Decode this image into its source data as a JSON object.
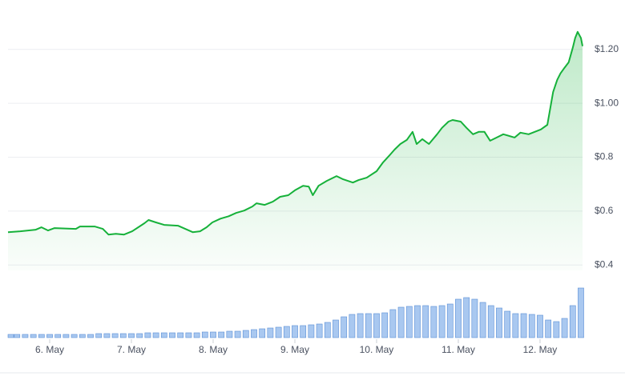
{
  "chart_data": [
    {
      "type": "line",
      "color": "#16b13a",
      "x": [
        5.49,
        5.64,
        5.83,
        5.9,
        5.98,
        6.06,
        6.32,
        6.37,
        6.55,
        6.65,
        6.72,
        6.81,
        6.91,
        7.01,
        7.16,
        7.21,
        7.3,
        7.4,
        7.57,
        7.75,
        7.84,
        7.92,
        7.99,
        8.09,
        8.19,
        8.28,
        8.38,
        8.48,
        8.53,
        8.63,
        8.73,
        8.82,
        8.92,
        9.0,
        9.1,
        9.17,
        9.22,
        9.29,
        9.39,
        9.51,
        9.59,
        9.71,
        9.78,
        9.88,
        10.0,
        10.08,
        10.15,
        10.22,
        10.29,
        10.37,
        10.44,
        10.49,
        10.56,
        10.64,
        10.74,
        10.8,
        10.88,
        10.93,
        11.03,
        11.1,
        11.18,
        11.25,
        11.32,
        11.39,
        11.47,
        11.55,
        11.69,
        11.76,
        11.86,
        12.01,
        12.09,
        12.16,
        12.21,
        12.25,
        12.3,
        12.35,
        12.4,
        12.43,
        12.46,
        12.5,
        12.52
      ],
      "values": [
        0.522,
        0.525,
        0.531,
        0.54,
        0.528,
        0.537,
        0.534,
        0.543,
        0.543,
        0.534,
        0.513,
        0.516,
        0.513,
        0.525,
        0.555,
        0.567,
        0.558,
        0.549,
        0.546,
        0.522,
        0.525,
        0.54,
        0.558,
        0.572,
        0.581,
        0.593,
        0.602,
        0.617,
        0.629,
        0.623,
        0.635,
        0.653,
        0.659,
        0.677,
        0.694,
        0.691,
        0.659,
        0.694,
        0.712,
        0.73,
        0.718,
        0.706,
        0.715,
        0.724,
        0.748,
        0.781,
        0.804,
        0.828,
        0.849,
        0.864,
        0.894,
        0.849,
        0.867,
        0.849,
        0.885,
        0.909,
        0.932,
        0.938,
        0.932,
        0.909,
        0.885,
        0.894,
        0.894,
        0.861,
        0.873,
        0.885,
        0.873,
        0.891,
        0.885,
        0.903,
        0.92,
        1.042,
        1.087,
        1.111,
        1.132,
        1.152,
        1.206,
        1.242,
        1.265,
        1.242,
        1.212
      ],
      "xlim": [
        5.49,
        12.52
      ],
      "xticks": [
        {
          "value": 6,
          "label": "6. May"
        },
        {
          "value": 7,
          "label": "7. May"
        },
        {
          "value": 8,
          "label": "8. May"
        },
        {
          "value": 9,
          "label": "9. May"
        },
        {
          "value": 10,
          "label": "10. May"
        },
        {
          "value": 11,
          "label": "11. May"
        },
        {
          "value": 12,
          "label": "12. May"
        }
      ],
      "ylim": [
        0.38,
        1.3
      ],
      "yticks": [
        {
          "value": 0.4,
          "label": "$0.4"
        },
        {
          "value": 0.6,
          "label": "$0.6"
        },
        {
          "value": 0.8,
          "label": "$0.8"
        },
        {
          "value": 1.0,
          "label": "$1.00"
        },
        {
          "value": 1.2,
          "label": "$1.20"
        }
      ],
      "grid": true
    },
    {
      "type": "bar",
      "color": "#a9c8f0",
      "x": [
        5.5,
        5.6,
        5.7,
        5.8,
        5.9,
        6.0,
        6.1,
        6.2,
        6.3,
        6.4,
        6.5,
        6.6,
        6.7,
        6.8,
        6.9,
        7.0,
        7.1,
        7.2,
        7.3,
        7.4,
        7.5,
        7.6,
        7.7,
        7.8,
        7.9,
        8.0,
        8.1,
        8.2,
        8.3,
        8.4,
        8.5,
        8.6,
        8.7,
        8.8,
        8.9,
        9.0,
        9.1,
        9.2,
        9.3,
        9.4,
        9.5,
        9.6,
        9.7,
        9.8,
        9.9,
        10.0,
        10.1,
        10.2,
        10.3,
        10.4,
        10.5,
        10.6,
        10.7,
        10.8,
        10.9,
        11.0,
        11.1,
        11.2,
        11.3,
        11.4,
        11.5,
        11.6,
        11.7,
        11.8,
        11.9,
        12.0,
        12.1,
        12.2,
        12.3,
        12.4,
        12.5
      ],
      "values": [
        4,
        4,
        4,
        4,
        4,
        4,
        4,
        4,
        4,
        4,
        4,
        5,
        5,
        5,
        5,
        5,
        5,
        6,
        6,
        6,
        6,
        6,
        6,
        6,
        7,
        7,
        7,
        8,
        8,
        9,
        10,
        11,
        12,
        13,
        14,
        15,
        15,
        16,
        17,
        19,
        22,
        26,
        29,
        30,
        30,
        30,
        31,
        35,
        38,
        39,
        40,
        40,
        39,
        40,
        42,
        48,
        50,
        48,
        44,
        40,
        37,
        33,
        30,
        30,
        29,
        28,
        22,
        20,
        24,
        40,
        62
      ],
      "ylim": [
        0,
        65
      ]
    }
  ]
}
